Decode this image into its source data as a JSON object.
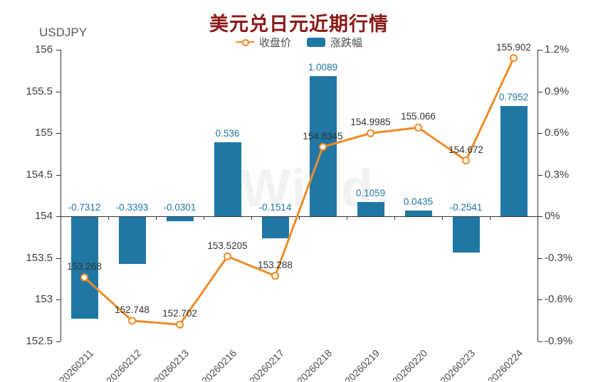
{
  "header": {
    "title": "美元兑日元近期行情"
  },
  "watermark": {
    "text": "Wind."
  },
  "colors": {
    "title": "#8b1a1a",
    "bar": "#2077a4",
    "line": "#ed8c2b",
    "marker_fill": "#fffdf4",
    "axis": "#333333",
    "axis_text": "#404040",
    "bar_label": "#2077a4",
    "point_label": "#333333",
    "watermark": "#f2f2f2"
  },
  "chart_data": {
    "type": "combo",
    "title": "美元兑日元近期行情",
    "categories": [
      "20260211",
      "20260212",
      "20260213",
      "20260216",
      "20260217",
      "20260218",
      "20260219",
      "20260220",
      "20260223",
      "20260224"
    ],
    "series": [
      {
        "name": "收盘价",
        "type": "line",
        "axis": "left",
        "values": [
          153.268,
          152.748,
          152.702,
          153.5205,
          153.288,
          154.8345,
          154.9985,
          155.066,
          154.672,
          155.902
        ]
      },
      {
        "name": "涨跌幅",
        "type": "bar",
        "axis": "right",
        "values": [
          -0.7312,
          -0.3393,
          -0.0301,
          0.536,
          -0.1514,
          1.0089,
          0.1059,
          0.0435,
          -0.2541,
          0.7952
        ]
      }
    ],
    "left_axis": {
      "label": "USDJPY",
      "min": 152.5,
      "max": 156,
      "ticks": [
        "156",
        "155.5",
        "155",
        "154.5",
        "154",
        "153.5",
        "153",
        "152.5"
      ]
    },
    "right_axis": {
      "min": -0.9,
      "max": 1.2,
      "unit": "%",
      "ticks": [
        "1.2%",
        "0.9%",
        "0.6%",
        "0.3%",
        "0%",
        "-0.3%",
        "-0.6%",
        "-0.9%"
      ]
    },
    "legend_position": "top",
    "grid": false,
    "x_label_rotation": 45
  }
}
